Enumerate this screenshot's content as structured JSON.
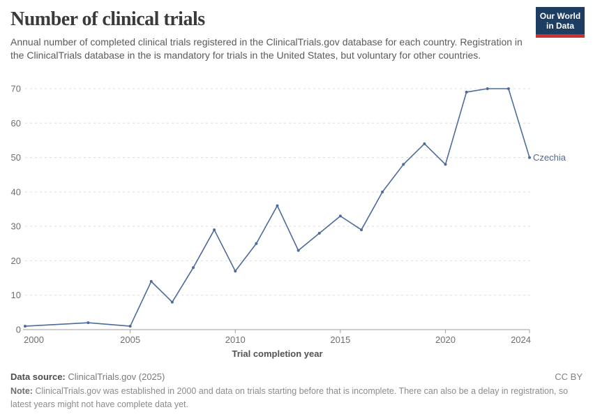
{
  "header": {
    "title": "Number of clinical trials",
    "subtitle": "Annual number of completed clinical trials registered in the ClinicalTrials.gov database for each country. Registration in the ClinicalTrials database in the is mandatory for trials in the United States, but voluntary for other countries.",
    "logo": {
      "line1": "Our World",
      "line2": "in Data",
      "navy": "#1d3d63",
      "red": "#d0312d"
    }
  },
  "chart_data": {
    "type": "line",
    "title": "Number of clinical trials",
    "xlabel": "Trial completion year",
    "ylabel": "",
    "xlim": [
      2000,
      2024
    ],
    "ylim": [
      0,
      70
    ],
    "x_ticks": [
      2000,
      2005,
      2010,
      2015,
      2020,
      2024
    ],
    "y_ticks": [
      0,
      10,
      20,
      30,
      40,
      50,
      60,
      70
    ],
    "grid": "horizontal-dashed",
    "legend_position": "end-of-line-label",
    "series": [
      {
        "name": "Czechia",
        "color": "#4c6a9c",
        "points": [
          [
            2000,
            1
          ],
          [
            2003,
            2
          ],
          [
            2005,
            1
          ],
          [
            2006,
            14
          ],
          [
            2007,
            8
          ],
          [
            2008,
            18
          ],
          [
            2009,
            29
          ],
          [
            2010,
            17
          ],
          [
            2011,
            25
          ],
          [
            2012,
            36
          ],
          [
            2013,
            23
          ],
          [
            2014,
            28
          ],
          [
            2015,
            33
          ],
          [
            2016,
            29
          ],
          [
            2017,
            40
          ],
          [
            2018,
            48
          ],
          [
            2019,
            54
          ],
          [
            2020,
            48
          ],
          [
            2021,
            69
          ],
          [
            2022,
            70
          ],
          [
            2023,
            70
          ],
          [
            2024,
            50
          ]
        ]
      }
    ],
    "colors": {
      "grid": "#dcdcdc",
      "axis": "#9e9e9e",
      "tick_label": "#6e6e6e",
      "axis_title": "#525252"
    }
  },
  "footer": {
    "data_source_label": "Data source:",
    "data_source_value": "ClinicalTrials.gov (2025)",
    "license": "CC BY",
    "note_label": "Note:",
    "note_text": "ClinicalTrials.gov was established in 2000 and data on trials starting before that is incomplete. There can also be a delay in registration, so latest years might not have complete data yet."
  }
}
